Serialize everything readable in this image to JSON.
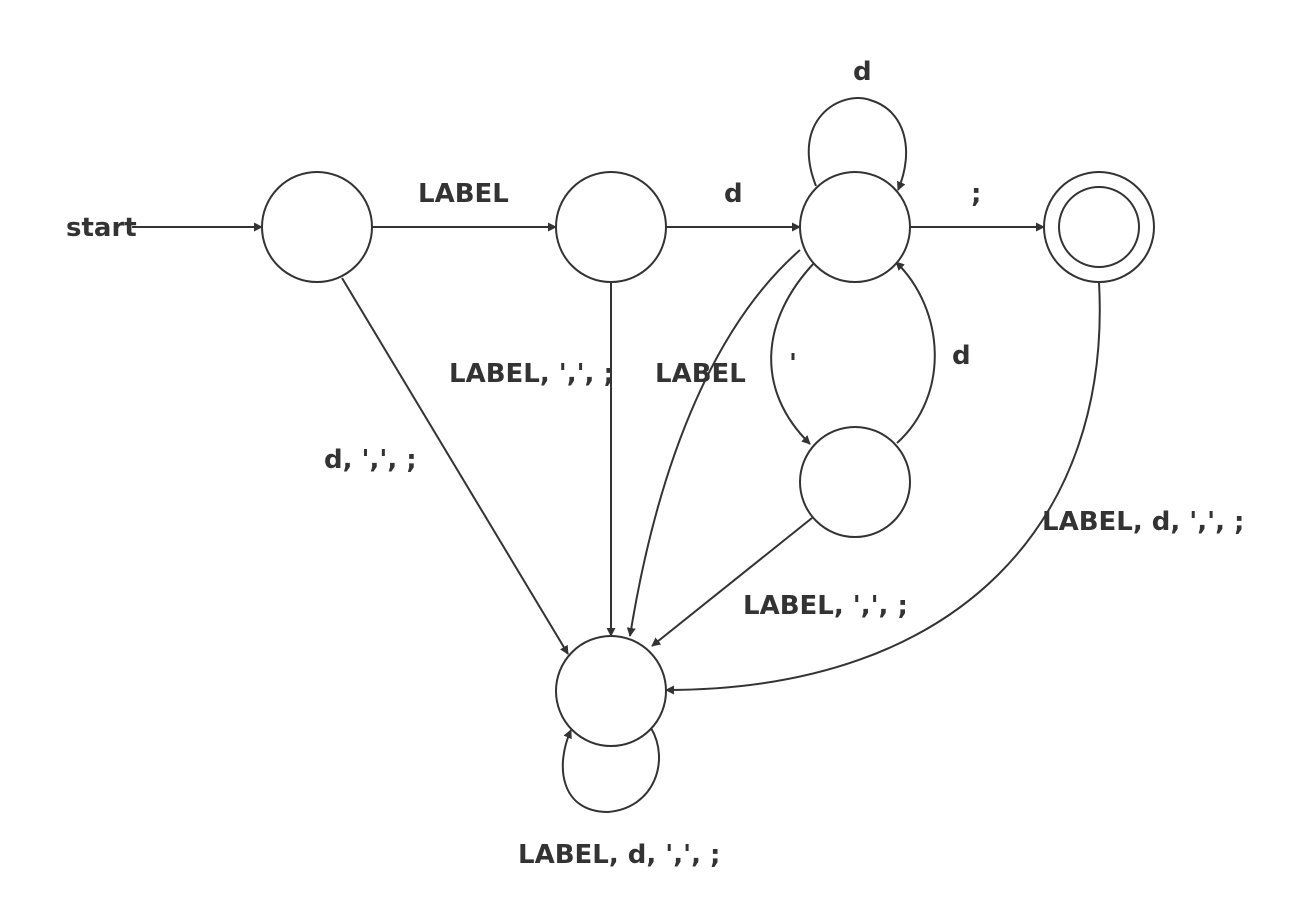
{
  "diagram": {
    "start_label": "start",
    "states": [
      {
        "id": "q0",
        "accepting": false
      },
      {
        "id": "q1",
        "accepting": false
      },
      {
        "id": "q2",
        "accepting": false
      },
      {
        "id": "q3",
        "accepting": true
      },
      {
        "id": "q4",
        "accepting": false
      },
      {
        "id": "trap",
        "accepting": false
      }
    ],
    "edges": [
      {
        "from": "q0",
        "to": "q1",
        "label": "LABEL"
      },
      {
        "from": "q1",
        "to": "q2",
        "label": "d"
      },
      {
        "from": "q2",
        "to": "q2",
        "label": "d"
      },
      {
        "from": "q2",
        "to": "q3",
        "label": ";"
      },
      {
        "from": "q2",
        "to": "q4",
        "label": "'"
      },
      {
        "from": "q4",
        "to": "q2",
        "label": "d"
      },
      {
        "from": "q0",
        "to": "trap",
        "label": "d, ',', ;"
      },
      {
        "from": "q1",
        "to": "trap",
        "label": "LABEL, ',', ;"
      },
      {
        "from": "q2",
        "to": "trap",
        "label": "LABEL"
      },
      {
        "from": "q4",
        "to": "trap",
        "label": "LABEL, ',', ;"
      },
      {
        "from": "q3",
        "to": "trap",
        "label": "LABEL, d, ',', ;"
      },
      {
        "from": "trap",
        "to": "trap",
        "label": "LABEL, d, ',', ;"
      }
    ]
  }
}
